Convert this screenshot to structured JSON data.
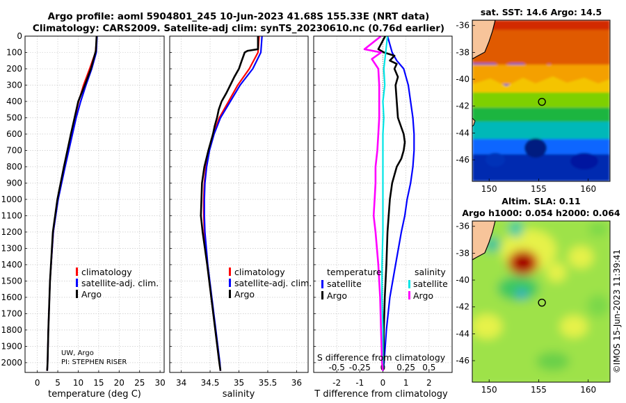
{
  "header": {
    "title_line1": "Argo profile: aoml 5904801_245 10-Jun-2023 41.68S 155.33E (NRT data)",
    "title_line2": "Climatology: CARS2009. Satellite-adj clim: synTS_20230610.nc (0.76d earlier)"
  },
  "colors": {
    "climatology": "#ff0000",
    "satellite": "#0000ff",
    "argo": "#000000",
    "sat_salinity": "#00e5e5",
    "argo_salinity": "#ff00ff"
  },
  "chart_data": [
    {
      "type": "line",
      "name": "temperature_profile",
      "xlabel": "temperature (deg C)",
      "ylabel": "",
      "xlim": [
        -3,
        31
      ],
      "ylim": [
        0,
        2060
      ],
      "xticks": [
        "0",
        "5",
        "10",
        "15",
        "20",
        "25",
        "30"
      ],
      "yticks": [
        "0",
        "100",
        "200",
        "300",
        "400",
        "500",
        "600",
        "700",
        "800",
        "900",
        "1000",
        "1100",
        "1200",
        "1300",
        "1400",
        "1500",
        "1600",
        "1700",
        "1800",
        "1900",
        "2000"
      ],
      "legend": [
        "climatology",
        "satellite-adj. clim.",
        "Argo"
      ],
      "annotation_1": "UW, Argo",
      "annotation_2": "PI: STEPHEN RISER",
      "series": [
        {
          "name": "climatology",
          "depth": [
            0,
            100,
            200,
            300,
            400,
            500,
            600,
            800,
            1000,
            1200,
            1500,
            1800,
            2000,
            2050
          ],
          "values": [
            14.6,
            14.2,
            12.8,
            11.3,
            10.1,
            9.2,
            8.3,
            6.6,
            5.0,
            3.9,
            3.1,
            2.7,
            2.5,
            2.4
          ]
        },
        {
          "name": "satellite-adj. clim.",
          "depth": [
            0,
            100,
            200,
            300,
            400,
            500,
            600,
            800,
            1000,
            1200,
            1500,
            1800,
            2000,
            2050
          ],
          "values": [
            14.6,
            14.4,
            13.3,
            11.9,
            10.6,
            9.5,
            8.6,
            6.8,
            5.1,
            3.9,
            3.1,
            2.7,
            2.5,
            2.4
          ]
        },
        {
          "name": "Argo",
          "depth": [
            0,
            90,
            200,
            300,
            400,
            500,
            600,
            800,
            1000,
            1200,
            1500,
            1800,
            2000,
            2050
          ],
          "values": [
            14.5,
            14.3,
            13.1,
            11.6,
            10.0,
            9.1,
            8.2,
            6.5,
            4.9,
            3.8,
            3.1,
            2.7,
            2.5,
            2.4
          ]
        }
      ]
    },
    {
      "type": "line",
      "name": "salinity_profile",
      "xlabel": "salinity",
      "xlim": [
        33.8,
        36.2
      ],
      "ylim": [
        0,
        2060
      ],
      "xticks": [
        "34",
        "34.5",
        "35",
        "35.5",
        "36"
      ],
      "legend": [
        "climatology",
        "satellite-adj. clim.",
        "Argo"
      ],
      "series": [
        {
          "name": "climatology",
          "depth": [
            0,
            100,
            200,
            300,
            400,
            500,
            600,
            700,
            800,
            900,
            1000,
            1100,
            1200,
            1400,
            1600,
            1800,
            2000,
            2050
          ],
          "values": [
            35.35,
            35.33,
            35.18,
            34.98,
            34.82,
            34.66,
            34.56,
            34.48,
            34.43,
            34.4,
            34.39,
            34.39,
            34.4,
            34.45,
            34.52,
            34.59,
            34.66,
            34.68
          ]
        },
        {
          "name": "satellite-adj. clim.",
          "depth": [
            0,
            100,
            200,
            300,
            400,
            500,
            600,
            700,
            800,
            900,
            1000,
            1100,
            1200,
            1400,
            1600,
            1800,
            2000,
            2050
          ],
          "values": [
            35.4,
            35.38,
            35.24,
            35.02,
            34.85,
            34.68,
            34.57,
            34.49,
            34.44,
            34.41,
            34.4,
            34.4,
            34.41,
            34.46,
            34.53,
            34.6,
            34.67,
            34.68
          ]
        },
        {
          "name": "Argo",
          "depth": [
            0,
            80,
            90,
            100,
            150,
            200,
            250,
            300,
            350,
            400,
            450,
            500,
            550,
            600,
            700,
            800,
            900,
            1000,
            1100,
            1200,
            1400,
            1600,
            1800,
            2000,
            2050
          ],
          "values": [
            35.33,
            35.33,
            35.15,
            35.1,
            35.05,
            35.0,
            34.92,
            34.85,
            34.78,
            34.7,
            34.65,
            34.62,
            34.58,
            34.55,
            34.47,
            34.4,
            34.36,
            34.35,
            34.34,
            34.37,
            34.45,
            34.52,
            34.59,
            34.66,
            34.68
          ]
        }
      ]
    },
    {
      "type": "line",
      "name": "difference_profile",
      "xlabel": "T difference from climatology",
      "x2label": "S difference from climatology",
      "xlim": [
        -3,
        3
      ],
      "ylim": [
        0,
        2060
      ],
      "xticks": [
        "-2",
        "-1",
        "0",
        "1",
        "2"
      ],
      "x2ticks": [
        "-0.5",
        "-0.25",
        "0",
        "0.25",
        "0.5"
      ],
      "legend_temperature_title": "temperature",
      "legend_salinity_title": "salinity",
      "legend_temperature": [
        "satellite",
        "Argo"
      ],
      "legend_salinity": [
        "satellite",
        "Argo"
      ],
      "series": [
        {
          "name": "T satellite",
          "depth": [
            0,
            100,
            150,
            200,
            300,
            400,
            500,
            600,
            700,
            800,
            900,
            1000,
            1100,
            1200,
            1400,
            1600,
            1800,
            2000,
            2050
          ],
          "values": [
            0.2,
            0.4,
            0.6,
            0.9,
            1.1,
            1.2,
            1.3,
            1.35,
            1.35,
            1.3,
            1.2,
            1.05,
            0.95,
            0.8,
            0.55,
            0.3,
            0.15,
            0.05,
            0.0
          ]
        },
        {
          "name": "T Argo",
          "depth": [
            0,
            80,
            100,
            120,
            150,
            170,
            200,
            250,
            300,
            400,
            500,
            600,
            650,
            700,
            750,
            800,
            850,
            900,
            1000,
            1100,
            1200,
            1400,
            1600,
            1800,
            2000,
            2050
          ],
          "values": [
            0.1,
            -0.2,
            0.05,
            0.5,
            0.3,
            0.6,
            0.5,
            0.65,
            0.55,
            0.6,
            0.65,
            0.9,
            0.95,
            0.9,
            0.8,
            0.6,
            0.5,
            0.4,
            0.3,
            0.25,
            0.2,
            0.15,
            0.08,
            0.04,
            0.02,
            0.0
          ]
        },
        {
          "name": "S satellite",
          "depth": [
            0,
            100,
            200,
            300,
            400,
            500,
            600,
            800,
            1000,
            1200,
            1400,
            1600,
            1800,
            2000,
            2050
          ],
          "values": [
            0.05,
            0.03,
            0.01,
            0.02,
            0.0,
            0.01,
            0.0,
            0.0,
            0.0,
            0.0,
            -0.01,
            -0.01,
            0.0,
            0.0,
            0.0
          ]
        },
        {
          "name": "S Argo",
          "depth": [
            0,
            80,
            100,
            140,
            200,
            300,
            400,
            500,
            600,
            700,
            800,
            900,
            1000,
            1100,
            1200,
            1400,
            1600,
            1800,
            2000,
            2050
          ],
          "values": [
            -0.02,
            -0.2,
            -0.02,
            -0.12,
            -0.05,
            -0.04,
            -0.04,
            -0.04,
            -0.05,
            -0.06,
            -0.08,
            -0.08,
            -0.09,
            -0.1,
            -0.08,
            -0.05,
            -0.03,
            -0.02,
            -0.01,
            0.0
          ]
        }
      ]
    },
    {
      "type": "heatmap",
      "name": "sst_map",
      "title": "sat. SST: 14.6 Argo: 14.5",
      "xticks": [
        "150",
        "155",
        "160"
      ],
      "yticks": [
        "-36",
        "-38",
        "-40",
        "-42",
        "-44",
        "-46"
      ],
      "xlim": [
        148.3,
        162.2
      ],
      "ylim": [
        -47.6,
        -35.6
      ],
      "marker": {
        "lon": 155.33,
        "lat": -41.68
      }
    },
    {
      "type": "heatmap",
      "name": "sla_map",
      "title_line1": "Altim. SLA: 0.11",
      "title_line2": "Argo h1000: 0.054 h2000: 0.064",
      "xticks": [
        "150",
        "155",
        "160"
      ],
      "yticks": [
        "-36",
        "-38",
        "-40",
        "-42",
        "-44",
        "-46"
      ],
      "xlim": [
        148.3,
        162.2
      ],
      "ylim": [
        -47.6,
        -35.6
      ],
      "marker": {
        "lon": 155.33,
        "lat": -41.68
      }
    }
  ],
  "footer": {
    "stamp": "©IMOS 15-Jun-2023 11:39:41"
  }
}
